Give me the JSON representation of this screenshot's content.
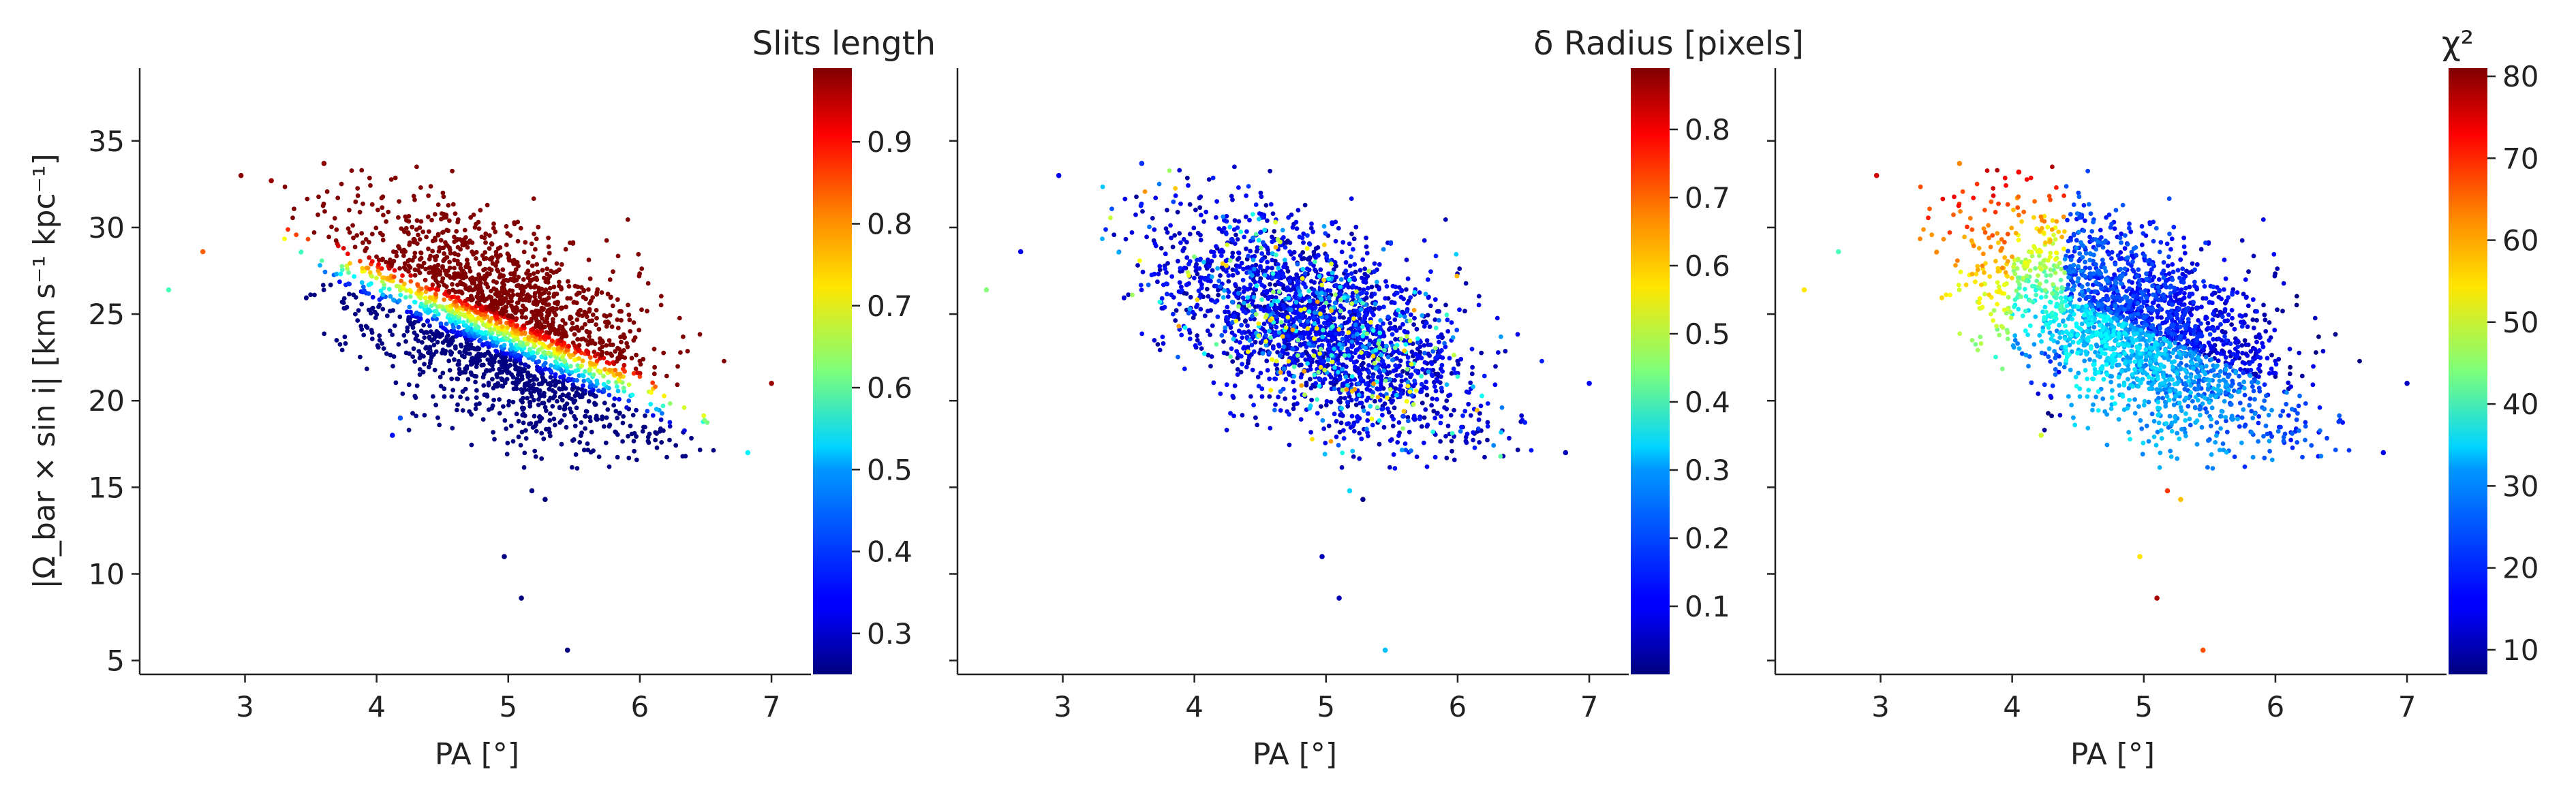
{
  "chart_data": [
    {
      "type": "scatter",
      "panel": "left",
      "xlabel": "PA [°]",
      "ylabel": "|Ω_bar × sin i|  [km s⁻¹ kpc⁻¹]",
      "xlim": [
        2.2,
        7.3
      ],
      "ylim": [
        4.2,
        39.2
      ],
      "xticks": [
        3,
        4,
        5,
        6,
        7
      ],
      "yticks": [
        5,
        10,
        15,
        20,
        25,
        30,
        35
      ],
      "colorbar": {
        "label": "Slits length",
        "range": [
          0.25,
          0.99
        ],
        "ticks": [
          0.3,
          0.4,
          0.5,
          0.6,
          0.7,
          0.8,
          0.9
        ],
        "colormap": "jet"
      },
      "color_mapping": "slit",
      "cloud": {
        "n": 2400,
        "pa_mean": 4.95,
        "pa_sd": 0.58,
        "pa_min": 3.3,
        "pa_max": 6.65,
        "omega_at_pa4": 27.3,
        "omega_slope": -3.2,
        "omega_sd": 2.7
      },
      "points": [
        {
          "x": 2.42,
          "y": 26.4,
          "c": 0.58
        },
        {
          "x": 2.68,
          "y": 28.6,
          "c": 0.83
        },
        {
          "x": 2.97,
          "y": 33.0,
          "c": 0.98
        },
        {
          "x": 3.2,
          "y": 32.7,
          "c": 0.97
        },
        {
          "x": 3.6,
          "y": 33.7,
          "c": 0.98
        },
        {
          "x": 4.12,
          "y": 18.0,
          "c": 0.35
        },
        {
          "x": 4.18,
          "y": 19.0,
          "c": 0.4
        },
        {
          "x": 6.82,
          "y": 17.0,
          "c": 0.52
        },
        {
          "x": 7.0,
          "y": 21.0,
          "c": 0.97
        },
        {
          "x": 5.18,
          "y": 14.8,
          "c": 0.25
        },
        {
          "x": 5.28,
          "y": 14.3,
          "c": 0.25
        },
        {
          "x": 4.97,
          "y": 11.0,
          "c": 0.25
        },
        {
          "x": 5.1,
          "y": 8.6,
          "c": 0.25
        },
        {
          "x": 5.45,
          "y": 5.6,
          "c": 0.25
        }
      ]
    },
    {
      "type": "scatter",
      "panel": "middle",
      "xlabel": "PA [°]",
      "xlim": [
        2.2,
        7.3
      ],
      "ylim": [
        4.2,
        39.2
      ],
      "xticks": [
        3,
        4,
        5,
        6,
        7
      ],
      "colorbar": {
        "label": "δ Radius [pixels]",
        "range": [
          0.0,
          0.89
        ],
        "ticks": [
          0.1,
          0.2,
          0.3,
          0.4,
          0.5,
          0.6,
          0.7,
          0.8
        ],
        "colormap": "jet"
      },
      "color_mapping": "radius",
      "cloud": {
        "n": 2400,
        "pa_mean": 4.95,
        "pa_sd": 0.58,
        "pa_min": 3.3,
        "pa_max": 6.65,
        "omega_at_pa4": 27.3,
        "omega_slope": -3.2,
        "omega_sd": 2.7
      },
      "points": [
        {
          "x": 2.42,
          "y": 26.4,
          "c": 0.45
        },
        {
          "x": 2.68,
          "y": 28.6,
          "c": 0.1
        },
        {
          "x": 2.97,
          "y": 33.0,
          "c": 0.1
        },
        {
          "x": 3.6,
          "y": 33.7,
          "c": 0.15
        },
        {
          "x": 6.82,
          "y": 17.0,
          "c": 0.05
        },
        {
          "x": 7.0,
          "y": 21.0,
          "c": 0.1
        },
        {
          "x": 5.18,
          "y": 14.8,
          "c": 0.3
        },
        {
          "x": 5.28,
          "y": 14.3,
          "c": 0.02
        },
        {
          "x": 4.97,
          "y": 11.0,
          "c": 0.05
        },
        {
          "x": 5.1,
          "y": 8.6,
          "c": 0.05
        },
        {
          "x": 5.45,
          "y": 5.6,
          "c": 0.28
        }
      ]
    },
    {
      "type": "scatter",
      "panel": "right",
      "xlabel": "PA [°]",
      "xlim": [
        2.2,
        7.3
      ],
      "ylim": [
        4.2,
        39.2
      ],
      "xticks": [
        3,
        4,
        5,
        6,
        7
      ],
      "colorbar": {
        "label": "χ²",
        "range": [
          7,
          81
        ],
        "ticks": [
          10,
          20,
          30,
          40,
          50,
          60,
          70,
          80
        ],
        "colormap": "jet"
      },
      "color_mapping": "chi2",
      "cloud": {
        "n": 2400,
        "pa_mean": 4.95,
        "pa_sd": 0.58,
        "pa_min": 3.3,
        "pa_max": 6.65,
        "omega_at_pa4": 27.3,
        "omega_slope": -3.2,
        "omega_sd": 2.7
      },
      "points": [
        {
          "x": 2.42,
          "y": 26.4,
          "c": 55
        },
        {
          "x": 2.68,
          "y": 28.6,
          "c": 40
        },
        {
          "x": 2.97,
          "y": 33.0,
          "c": 75
        },
        {
          "x": 3.6,
          "y": 33.7,
          "c": 62
        },
        {
          "x": 4.05,
          "y": 33.2,
          "c": 72
        },
        {
          "x": 4.22,
          "y": 18.0,
          "c": 50
        },
        {
          "x": 6.82,
          "y": 17.0,
          "c": 15
        },
        {
          "x": 7.0,
          "y": 21.0,
          "c": 12
        },
        {
          "x": 5.18,
          "y": 14.8,
          "c": 68
        },
        {
          "x": 5.28,
          "y": 14.3,
          "c": 58
        },
        {
          "x": 4.97,
          "y": 11.0,
          "c": 55
        },
        {
          "x": 5.1,
          "y": 8.6,
          "c": 78
        },
        {
          "x": 5.45,
          "y": 5.6,
          "c": 66
        }
      ]
    }
  ]
}
